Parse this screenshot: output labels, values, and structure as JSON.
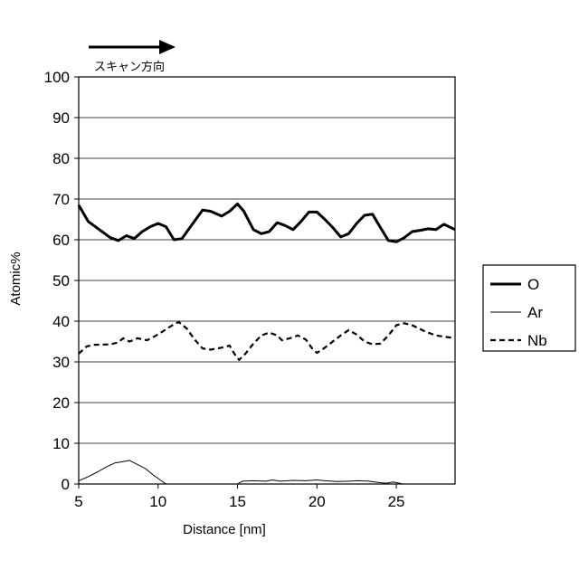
{
  "chart_data": {
    "type": "line",
    "title": "",
    "xlabel": "Distance [nm]",
    "ylabel": "Atomic%",
    "xlim": [
      5,
      28.7
    ],
    "ylim": [
      0,
      100
    ],
    "x_ticks": [
      "5",
      "10",
      "15",
      "20",
      "25"
    ],
    "x_tick_values": [
      5,
      10,
      15,
      20,
      25
    ],
    "y_ticks": [
      "0",
      "10",
      "20",
      "30",
      "40",
      "50",
      "60",
      "70",
      "80",
      "90",
      "100"
    ],
    "y_tick_values": [
      0,
      10,
      20,
      30,
      40,
      50,
      60,
      70,
      80,
      90,
      100
    ],
    "grid": "horizontal",
    "legend_position": "right",
    "annotation": "スキャン方向",
    "series": [
      {
        "name": "O",
        "style": "solid-thick",
        "color": "#000000",
        "points": [
          [
            5,
            68.5
          ],
          [
            5.6,
            64.5
          ],
          [
            6.3,
            62.5
          ],
          [
            7,
            60.5
          ],
          [
            7.5,
            59.8
          ],
          [
            8,
            61
          ],
          [
            8.5,
            60.3
          ],
          [
            9,
            62
          ],
          [
            9.5,
            63.2
          ],
          [
            10,
            64
          ],
          [
            10.5,
            63.2
          ],
          [
            11,
            60
          ],
          [
            11.5,
            60.3
          ],
          [
            12,
            63
          ],
          [
            12.8,
            67.3
          ],
          [
            13.3,
            67
          ],
          [
            14,
            65.8
          ],
          [
            14.5,
            67
          ],
          [
            15,
            68.8
          ],
          [
            15.4,
            67
          ],
          [
            16,
            62.5
          ],
          [
            16.5,
            61.5
          ],
          [
            17,
            62
          ],
          [
            17.5,
            64.2
          ],
          [
            18,
            63.5
          ],
          [
            18.5,
            62.5
          ],
          [
            19,
            64.5
          ],
          [
            19.5,
            66.8
          ],
          [
            20,
            66.8
          ],
          [
            20.5,
            65
          ],
          [
            21,
            63
          ],
          [
            21.5,
            60.7
          ],
          [
            22,
            61.5
          ],
          [
            22.5,
            64
          ],
          [
            23,
            66
          ],
          [
            23.5,
            66.3
          ],
          [
            24,
            63
          ],
          [
            24.5,
            59.8
          ],
          [
            25,
            59.5
          ],
          [
            25.5,
            60.5
          ],
          [
            26,
            62
          ],
          [
            26.5,
            62.3
          ],
          [
            27,
            62.7
          ],
          [
            27.5,
            62.5
          ],
          [
            28,
            63.8
          ],
          [
            28.7,
            62.5
          ]
        ]
      },
      {
        "name": "Ar",
        "style": "solid-thin",
        "color": "#000000",
        "points": [
          [
            5,
            0.8
          ],
          [
            5.6,
            1.8
          ],
          [
            6.2,
            3
          ],
          [
            6.8,
            4.3
          ],
          [
            7.3,
            5.2
          ],
          [
            7.8,
            5.5
          ],
          [
            8.2,
            5.8
          ],
          [
            8.7,
            4.8
          ],
          [
            9.2,
            3.8
          ],
          [
            9.7,
            2.2
          ],
          [
            10.2,
            0.8
          ],
          [
            10.5,
            0
          ],
          [
            15,
            0
          ],
          [
            15.3,
            0.7
          ],
          [
            16,
            0.8
          ],
          [
            16.8,
            0.7
          ],
          [
            17.2,
            1
          ],
          [
            17.7,
            0.7
          ],
          [
            18.5,
            0.9
          ],
          [
            19.3,
            0.8
          ],
          [
            20,
            1
          ],
          [
            20.5,
            0.8
          ],
          [
            21.3,
            0.6
          ],
          [
            22,
            0.7
          ],
          [
            22.6,
            0.8
          ],
          [
            23.3,
            0.7
          ],
          [
            24,
            0.3
          ],
          [
            24.4,
            0.2
          ],
          [
            24.8,
            0.5
          ],
          [
            25.2,
            0.2
          ],
          [
            25.4,
            0
          ]
        ]
      },
      {
        "name": "Nb",
        "style": "dashed",
        "color": "#000000",
        "points": [
          [
            5,
            32
          ],
          [
            5.5,
            33.8
          ],
          [
            6,
            34.2
          ],
          [
            7,
            34.3
          ],
          [
            7.5,
            34.8
          ],
          [
            7.8,
            35.8
          ],
          [
            8.2,
            35
          ],
          [
            8.7,
            35.8
          ],
          [
            9.3,
            35.3
          ],
          [
            9.8,
            36.3
          ],
          [
            10.3,
            37.5
          ],
          [
            10.9,
            39
          ],
          [
            11.3,
            39.8
          ],
          [
            11.8,
            38.2
          ],
          [
            12.3,
            35.5
          ],
          [
            12.8,
            33.3
          ],
          [
            13.3,
            33
          ],
          [
            14,
            33.5
          ],
          [
            14.5,
            34
          ],
          [
            14.8,
            32
          ],
          [
            15.1,
            30.5
          ],
          [
            15.5,
            32
          ],
          [
            16,
            34.5
          ],
          [
            16.5,
            36.5
          ],
          [
            17,
            37.2
          ],
          [
            17.5,
            36.5
          ],
          [
            17.8,
            35.3
          ],
          [
            18.3,
            35.8
          ],
          [
            18.8,
            36.5
          ],
          [
            19.3,
            35.5
          ],
          [
            19.7,
            33.3
          ],
          [
            20,
            32.2
          ],
          [
            20.5,
            33.5
          ],
          [
            21,
            35
          ],
          [
            21.5,
            36.5
          ],
          [
            22,
            37.8
          ],
          [
            22.5,
            36.7
          ],
          [
            23,
            35
          ],
          [
            23.5,
            34.3
          ],
          [
            24,
            34.5
          ],
          [
            24.5,
            36.5
          ],
          [
            25,
            39
          ],
          [
            25.5,
            39.5
          ],
          [
            26,
            39
          ],
          [
            26.8,
            37.5
          ],
          [
            27.5,
            36.5
          ],
          [
            28.7,
            35.8
          ]
        ]
      }
    ]
  }
}
